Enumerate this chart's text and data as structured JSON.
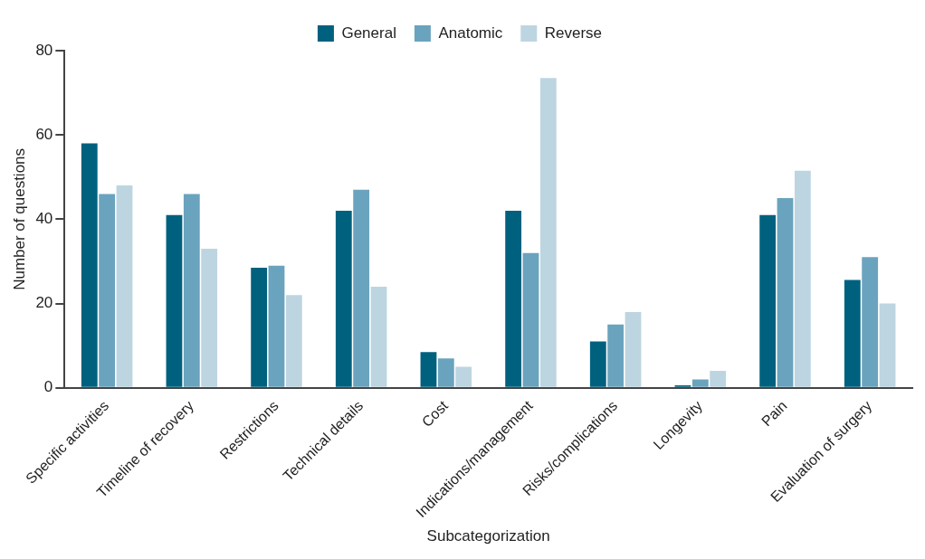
{
  "chart_data": {
    "type": "bar",
    "xlabel": "Subcategorization",
    "ylabel": "Number of questions",
    "categories": [
      "Specific activities",
      "Timeline of recovery",
      "Restrictions",
      "Technical details",
      "Cost",
      "Indications/management",
      "Risks/complications",
      "Longevity",
      "Pain",
      "Evaluation of surgery"
    ],
    "series": [
      {
        "name": "General",
        "color": "#00617f",
        "values": [
          58,
          41,
          28.5,
          42,
          8.5,
          42,
          11,
          0.6,
          41,
          25.6
        ]
      },
      {
        "name": "Anatomic",
        "color": "#6aa3bd",
        "values": [
          46,
          46,
          29,
          47,
          7,
          32,
          15,
          2,
          45,
          31
        ]
      },
      {
        "name": "Reverse",
        "color": "#bdd5e1",
        "values": [
          48,
          33,
          22,
          24,
          5,
          73.5,
          18,
          4,
          51.5,
          20
        ]
      }
    ],
    "ylim": [
      0,
      80
    ],
    "yticks": [
      0,
      20,
      40,
      60,
      80
    ],
    "grid": false,
    "legend": "top"
  }
}
